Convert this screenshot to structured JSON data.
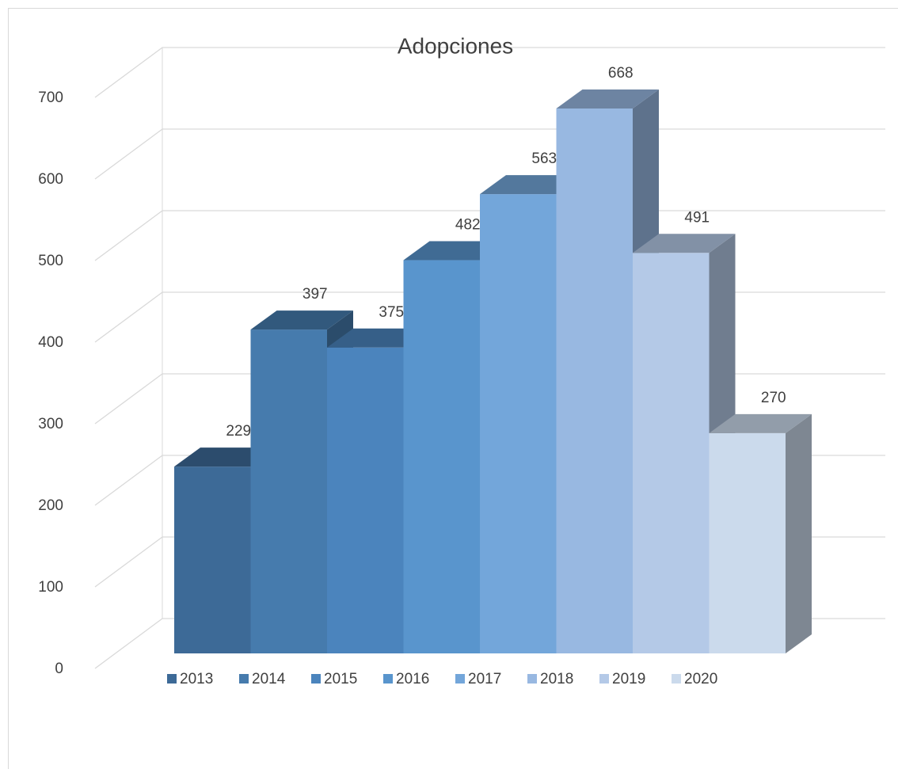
{
  "chart_data": {
    "type": "bar3d",
    "title": "Adopciones",
    "series": [
      {
        "name": "2013",
        "color": "#3d6a97",
        "values": [
          229
        ]
      },
      {
        "name": "2014",
        "color": "#467bad",
        "values": [
          397
        ]
      },
      {
        "name": "2015",
        "color": "#4b84bd",
        "values": [
          375
        ]
      },
      {
        "name": "2016",
        "color": "#5995cd",
        "values": [
          482
        ]
      },
      {
        "name": "2017",
        "color": "#73a6da",
        "values": [
          563
        ]
      },
      {
        "name": "2018",
        "color": "#98b8e1",
        "values": [
          668
        ]
      },
      {
        "name": "2019",
        "color": "#b4c9e7",
        "values": [
          491
        ]
      },
      {
        "name": "2020",
        "color": "#cbdaec",
        "values": [
          270
        ]
      }
    ],
    "ylim": [
      0,
      700
    ],
    "yticks": [
      0,
      100,
      200,
      300,
      400,
      500,
      600,
      700
    ],
    "grid": true,
    "legend": "bottom"
  }
}
